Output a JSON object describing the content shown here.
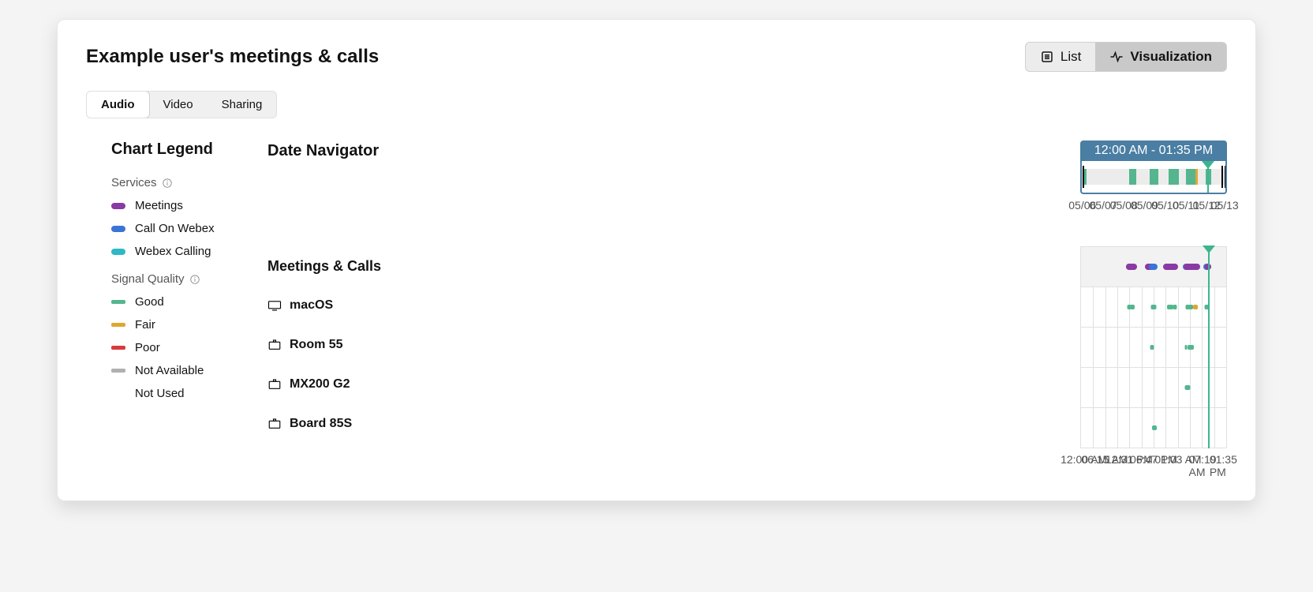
{
  "header": {
    "title": "Example user's meetings & calls",
    "view_toggle": {
      "list": "List",
      "visualization": "Visualization",
      "active": "visualization"
    }
  },
  "tabs": {
    "items": [
      "Audio",
      "Video",
      "Sharing"
    ],
    "active_index": 0
  },
  "colors": {
    "brand_bar": "#4a7ea3",
    "brand_border": "#4a7ea3",
    "playhead": "#3cb58f",
    "meetings": "#8a3aa3",
    "call_on_webex": "#3a74d6",
    "webex_calling": "#2fb8c5",
    "good": "#54b58f",
    "fair": "#e0a72f",
    "poor": "#d93b3b",
    "not_available": "#b0b0b0",
    "not_used": "#b0b0b0",
    "grid": "#e0e0e0",
    "nav_stripe": "#ececec",
    "text_muted": "#555555"
  },
  "date_navigator": {
    "label": "Date Navigator",
    "range_text": "12:00 AM - 01:35 PM",
    "axis_labels": [
      "05/06",
      "05/07",
      "05/08",
      "05/09",
      "05/10",
      "05/11",
      "05/12",
      "05/13"
    ],
    "axis_positions_pct": [
      1.5,
      15.6,
      29.7,
      43.8,
      57.9,
      72.0,
      86.1,
      98.5
    ],
    "playhead_pct": 87.8,
    "handle_left_pct": 0.6,
    "handle_right_pct": 99.4,
    "ticks": [
      {
        "x_pct": 1.8,
        "color": "good",
        "w": 3
      },
      {
        "x_pct": 33.2,
        "color": "good",
        "w": 3
      },
      {
        "x_pct": 34.5,
        "color": "good",
        "w": 3
      },
      {
        "x_pct": 35.4,
        "color": "good",
        "w": 5
      },
      {
        "x_pct": 47.5,
        "color": "good",
        "w": 4
      },
      {
        "x_pct": 49.0,
        "color": "good",
        "w": 3
      },
      {
        "x_pct": 49.8,
        "color": "good",
        "w": 6
      },
      {
        "x_pct": 50.8,
        "color": "good",
        "w": 5
      },
      {
        "x_pct": 51.8,
        "color": "good",
        "w": 3
      },
      {
        "x_pct": 60.5,
        "color": "good",
        "w": 3
      },
      {
        "x_pct": 61.3,
        "color": "good",
        "w": 5
      },
      {
        "x_pct": 62.5,
        "color": "good",
        "w": 3
      },
      {
        "x_pct": 63.5,
        "color": "good",
        "w": 3
      },
      {
        "x_pct": 65.0,
        "color": "good",
        "w": 5
      },
      {
        "x_pct": 72.5,
        "color": "good",
        "w": 3
      },
      {
        "x_pct": 73.3,
        "color": "good",
        "w": 5
      },
      {
        "x_pct": 74.6,
        "color": "good",
        "w": 3
      },
      {
        "x_pct": 76.0,
        "color": "good",
        "w": 6
      },
      {
        "x_pct": 77.8,
        "color": "good",
        "w": 5
      },
      {
        "x_pct": 79.2,
        "color": "fair",
        "w": 3
      },
      {
        "x_pct": 86.5,
        "color": "good",
        "w": 3
      },
      {
        "x_pct": 87.4,
        "color": "good",
        "w": 3
      },
      {
        "x_pct": 88.3,
        "color": "good",
        "w": 3
      }
    ]
  },
  "timeline": {
    "label": "Meetings & Calls",
    "axis_labels": [
      "12:00 AM",
      "06:15 AM",
      "12:31 PM",
      "06:47 PM",
      "01:03 AM",
      "07:19 AM",
      "01:35 PM"
    ],
    "playhead_pct": 87.8,
    "rows": [
      {
        "id": "meetings-calls",
        "label": "Meetings & Calls",
        "icon": null,
        "header": true,
        "events": [
          {
            "type": "dot",
            "x_pct": 33.0,
            "w": 8,
            "color": "call_on_webex"
          },
          {
            "type": "dot",
            "x_pct": 35.0,
            "w": 14,
            "color": "meetings"
          },
          {
            "type": "dot",
            "x_pct": 47.0,
            "w": 10,
            "color": "meetings"
          },
          {
            "type": "dot",
            "x_pct": 48.2,
            "w": 8,
            "color": "meetings"
          },
          {
            "type": "dot",
            "x_pct": 49.6,
            "w": 10,
            "color": "call_on_webex"
          },
          {
            "type": "dot",
            "x_pct": 50.8,
            "w": 8,
            "color": "call_on_webex"
          },
          {
            "type": "dot",
            "x_pct": 60.5,
            "w": 14,
            "color": "meetings"
          },
          {
            "type": "dot",
            "x_pct": 62.2,
            "w": 14,
            "color": "meetings"
          },
          {
            "type": "dot",
            "x_pct": 64.5,
            "w": 8,
            "color": "meetings"
          },
          {
            "type": "dot",
            "x_pct": 72.2,
            "w": 8,
            "color": "call_on_webex"
          },
          {
            "type": "dot",
            "x_pct": 73.2,
            "w": 10,
            "color": "meetings"
          },
          {
            "type": "dot",
            "x_pct": 75.5,
            "w": 14,
            "color": "meetings"
          },
          {
            "type": "dot",
            "x_pct": 78.8,
            "w": 10,
            "color": "meetings"
          },
          {
            "type": "dot",
            "x_pct": 80.0,
            "w": 8,
            "color": "meetings"
          },
          {
            "type": "dot",
            "x_pct": 86.3,
            "w": 8,
            "color": "call_on_webex"
          },
          {
            "type": "dot",
            "x_pct": 87.3,
            "w": 8,
            "color": "meetings"
          }
        ]
      },
      {
        "id": "macos",
        "label": "macOS",
        "icon": "desktop",
        "events": [
          {
            "type": "bar",
            "x_pct": 33.0,
            "w": 5,
            "color": "good"
          },
          {
            "type": "bar",
            "x_pct": 35.5,
            "w": 6,
            "color": "good"
          },
          {
            "type": "bar",
            "x_pct": 47.0,
            "w": 4,
            "color": "not_available",
            "dotted": true
          },
          {
            "type": "bar",
            "x_pct": 49.5,
            "w": 5,
            "color": "good"
          },
          {
            "type": "bar",
            "x_pct": 50.6,
            "w": 5,
            "color": "good"
          },
          {
            "type": "bar",
            "x_pct": 60.5,
            "w": 4,
            "color": "good"
          },
          {
            "type": "bar",
            "x_pct": 61.4,
            "w": 4,
            "color": "good"
          },
          {
            "type": "bar",
            "x_pct": 62.4,
            "w": 4,
            "color": "good"
          },
          {
            "type": "bar",
            "x_pct": 64.5,
            "w": 5,
            "color": "good"
          },
          {
            "type": "bar",
            "x_pct": 72.2,
            "w": 4,
            "color": "not_available",
            "dotted": true
          },
          {
            "type": "bar",
            "x_pct": 73.3,
            "w": 5,
            "color": "good"
          },
          {
            "type": "bar",
            "x_pct": 75.5,
            "w": 6,
            "color": "good"
          },
          {
            "type": "bar",
            "x_pct": 79.0,
            "w": 6,
            "color": "fair"
          },
          {
            "type": "bar",
            "x_pct": 86.3,
            "w": 5,
            "color": "good"
          },
          {
            "type": "bar",
            "x_pct": 87.3,
            "w": 4,
            "color": "good"
          }
        ]
      },
      {
        "id": "room55",
        "label": "Room 55",
        "icon": "device",
        "events": [
          {
            "type": "bar",
            "x_pct": 49.0,
            "w": 5,
            "color": "good"
          },
          {
            "type": "bar",
            "x_pct": 72.2,
            "w": 3,
            "color": "good"
          },
          {
            "type": "bar",
            "x_pct": 75.8,
            "w": 8,
            "color": "good"
          }
        ]
      },
      {
        "id": "mx200g2",
        "label": "MX200 G2",
        "icon": "device",
        "events": [
          {
            "type": "bar",
            "x_pct": 73.3,
            "w": 7,
            "color": "good"
          }
        ]
      },
      {
        "id": "board85s",
        "label": "Board 85S",
        "icon": "device",
        "events": [
          {
            "type": "bar",
            "x_pct": 50.6,
            "w": 6,
            "color": "good"
          }
        ]
      }
    ]
  },
  "legend": {
    "title": "Chart Legend",
    "groups": [
      {
        "title": "Services",
        "info": true,
        "style": "pill",
        "items": [
          {
            "label": "Meetings",
            "color": "meetings"
          },
          {
            "label": "Call On Webex",
            "color": "call_on_webex"
          },
          {
            "label": "Webex Calling",
            "color": "webex_calling"
          }
        ]
      },
      {
        "title": "Signal Quality",
        "info": true,
        "style": "line",
        "items": [
          {
            "label": "Good",
            "color": "good"
          },
          {
            "label": "Fair",
            "color": "fair"
          },
          {
            "label": "Poor",
            "color": "poor"
          },
          {
            "label": "Not Available",
            "color": "not_available"
          },
          {
            "label": "Not Used",
            "color": "not_used",
            "dotted": true
          }
        ]
      }
    ]
  }
}
